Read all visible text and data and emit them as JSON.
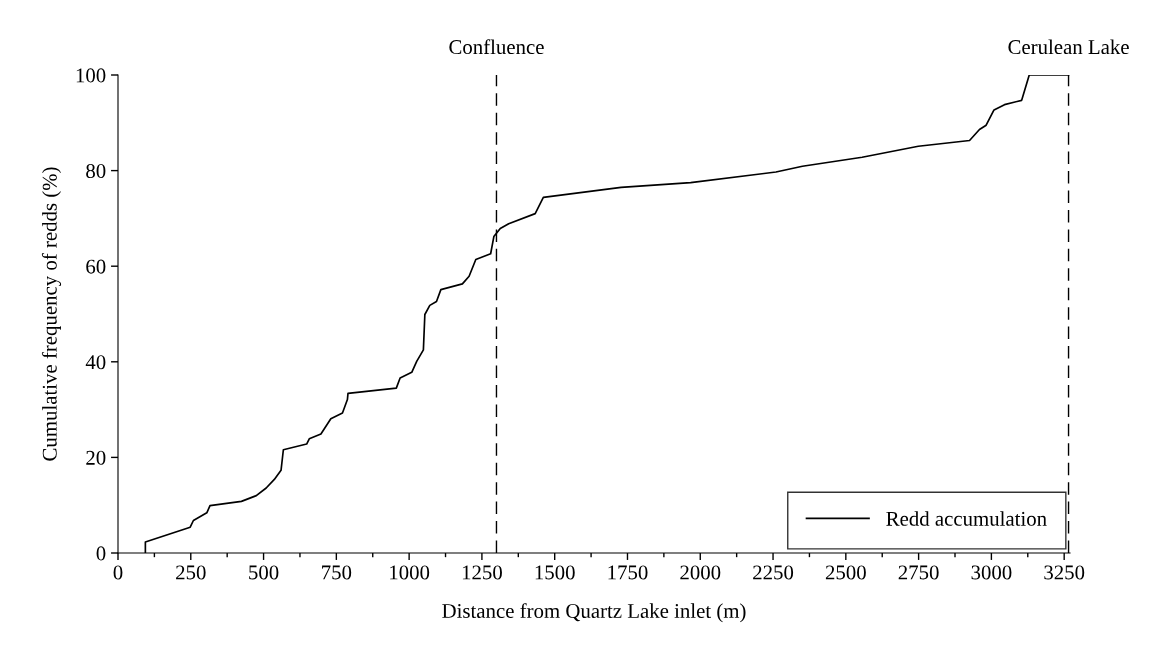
{
  "chart_data": {
    "type": "line",
    "xlabel": "Distance from Quartz Lake inlet (m)",
    "ylabel": "Cumulative frequency of redds (%)",
    "series": [
      {
        "name": "Redd accumulation",
        "color": "#000000",
        "x": [
          94,
          94,
          248,
          259,
          305,
          316,
          424,
          475,
          509,
          537,
          560,
          568,
          648,
          657,
          697,
          731,
          771,
          788,
          790,
          956,
          969,
          1009,
          1026,
          1049,
          1054,
          1071,
          1094,
          1109,
          1183,
          1206,
          1229,
          1280,
          1291,
          1313,
          1342,
          1433,
          1461,
          1728,
          1967,
          2260,
          2351,
          2556,
          2749,
          2925,
          2959,
          2982,
          3009,
          3045,
          3104,
          3130,
          3265
        ],
        "values": [
          0,
          2.3,
          5.4,
          6.8,
          8.4,
          9.9,
          10.8,
          12.0,
          13.6,
          15.4,
          17.3,
          21.6,
          22.8,
          23.9,
          24.9,
          28.1,
          29.3,
          32.1,
          33.4,
          34.5,
          36.6,
          37.8,
          40.1,
          42.5,
          49.9,
          51.8,
          52.6,
          55.1,
          56.3,
          57.9,
          61.4,
          62.6,
          66.2,
          67.9,
          68.9,
          71.0,
          74.4,
          76.5,
          77.5,
          79.7,
          80.9,
          82.8,
          85.1,
          86.3,
          88.6,
          89.5,
          92.7,
          93.8,
          94.7,
          100,
          100
        ]
      }
    ],
    "xlim": [
      0,
      3270
    ],
    "ylim": [
      0,
      100
    ],
    "xticks": [
      0,
      {
        "value": 125,
        "label": null
      },
      250,
      {
        "value": 375,
        "label": null
      },
      500,
      {
        "value": 625,
        "label": null
      },
      750,
      {
        "value": 875,
        "label": null
      },
      1000,
      {
        "value": 1125,
        "label": null
      },
      1250,
      {
        "value": 1375,
        "label": null
      },
      1500,
      {
        "value": 1625,
        "label": null
      },
      1750,
      {
        "value": 1875,
        "label": null
      },
      2000,
      {
        "value": 2125,
        "label": null
      },
      2250,
      {
        "value": 2375,
        "label": null
      },
      2500,
      {
        "value": 2625,
        "label": null
      },
      2750,
      {
        "value": 2875,
        "label": null
      },
      3000,
      {
        "value": 3125,
        "label": null
      },
      3250
    ],
    "yticks": [
      0,
      20,
      40,
      60,
      80,
      100
    ],
    "ref_lines": [
      {
        "axis": "x",
        "value": 1300,
        "label": "Confluence",
        "color": "#000000",
        "line_style": "dashed"
      },
      {
        "axis": "x",
        "value": 3265,
        "label": "Cerulean Lake",
        "color": "#000000",
        "line_style": "dashed"
      }
    ],
    "grid": false,
    "legend": "bottom right",
    "marker": "none",
    "line_style": "solid"
  }
}
